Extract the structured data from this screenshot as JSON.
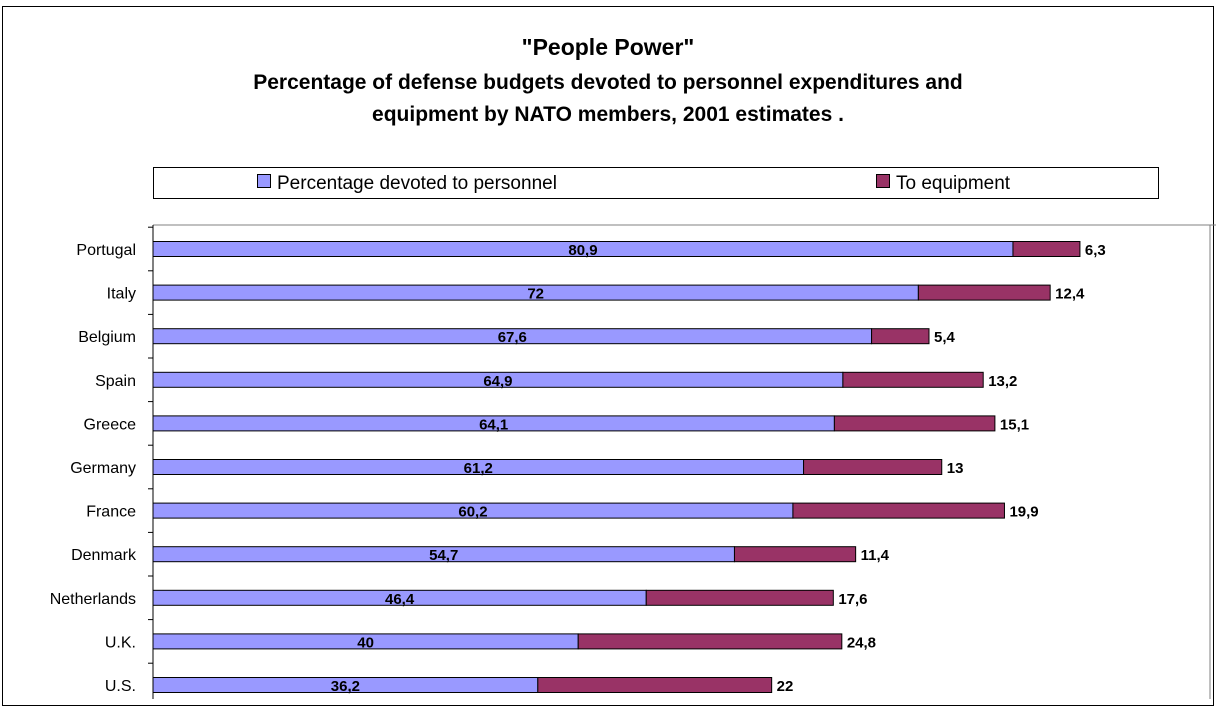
{
  "colors": {
    "personnel": "#9999ff",
    "equipment": "#993366",
    "plot_border": "#000000"
  },
  "chart_data": {
    "type": "bar",
    "orientation": "horizontal",
    "stacked": true,
    "title": "\"People Power\"",
    "subtitle_line1": "Percentage of defense budgets devoted to personnel expenditures and",
    "subtitle_line2": "equipment by NATO members, 2001 estimates .",
    "legend_position": "top",
    "grid": false,
    "categories": [
      "Portugal",
      "Italy",
      "Belgium",
      "Spain",
      "Greece",
      "Germany",
      "France",
      "Denmark",
      "Netherlands",
      "U.K.",
      "U.S."
    ],
    "series": [
      {
        "name": "Percentage devoted to personnel",
        "values": [
          80.9,
          72,
          67.6,
          64.9,
          64.1,
          61.2,
          60.2,
          54.7,
          46.4,
          40,
          36.2
        ],
        "labels": [
          "80,9",
          "72",
          "67,6",
          "64,9",
          "64,1",
          "61,2",
          "60,2",
          "54,7",
          "46,4",
          "40",
          "36,2"
        ]
      },
      {
        "name": "To equipment",
        "values": [
          6.3,
          12.4,
          5.4,
          13.2,
          15.1,
          13,
          19.9,
          11.4,
          17.6,
          24.8,
          22
        ],
        "labels": [
          "6,3",
          "12,4",
          "5,4",
          "13,2",
          "15,1",
          "13",
          "19,9",
          "11,4",
          "17,6",
          "24,8",
          "22"
        ]
      }
    ]
  }
}
